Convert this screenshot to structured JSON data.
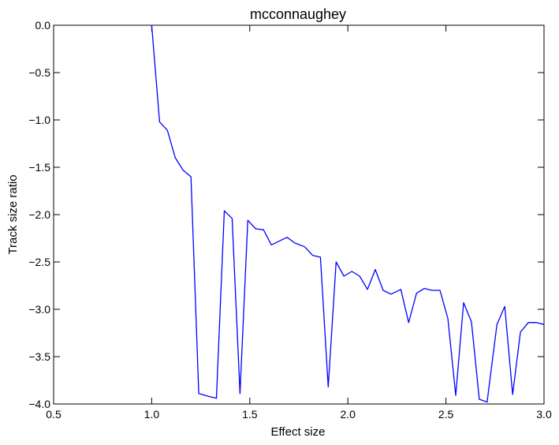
{
  "chart_data": {
    "type": "line",
    "title": "mcconnaughey",
    "xlabel": "Effect size",
    "ylabel": "Track size ratio",
    "xlim": [
      0.5,
      3.0
    ],
    "ylim": [
      -4.0,
      0.0
    ],
    "xticks": [
      0.5,
      1.0,
      1.5,
      2.0,
      2.5,
      3.0
    ],
    "xtick_labels": [
      "0.5",
      "1.0",
      "1.5",
      "2.0",
      "2.5",
      "3.0"
    ],
    "yticks": [
      0.0,
      -0.5,
      -1.0,
      -1.5,
      -2.0,
      -2.5,
      -3.0,
      -3.5,
      -4.0
    ],
    "ytick_labels": [
      "0.0",
      "−0.5",
      "−1.0",
      "−1.5",
      "−2.0",
      "−2.5",
      "−3.0",
      "−3.5",
      "−4.0"
    ],
    "grid": false,
    "color": "#0000ff",
    "x": [
      1.0,
      1.04,
      1.08,
      1.12,
      1.16,
      1.2,
      1.24,
      1.29,
      1.33,
      1.37,
      1.41,
      1.45,
      1.49,
      1.53,
      1.57,
      1.61,
      1.65,
      1.69,
      1.73,
      1.78,
      1.82,
      1.86,
      1.9,
      1.94,
      1.98,
      2.02,
      2.06,
      2.1,
      2.14,
      2.18,
      2.22,
      2.27,
      2.31,
      2.35,
      2.39,
      2.43,
      2.47,
      2.51,
      2.55,
      2.59,
      2.63,
      2.67,
      2.71,
      2.76,
      2.8,
      2.84,
      2.88,
      2.92,
      2.96,
      3.0
    ],
    "y": [
      0.0,
      -1.02,
      -1.11,
      -1.4,
      -1.53,
      -1.6,
      -3.89,
      -3.92,
      -3.94,
      -1.96,
      -2.04,
      -3.89,
      -2.06,
      -2.15,
      -2.16,
      -2.32,
      -2.28,
      -2.24,
      -2.3,
      -2.34,
      -2.43,
      -2.45,
      -3.82,
      -2.5,
      -2.65,
      -2.6,
      -2.65,
      -2.79,
      -2.58,
      -2.8,
      -2.84,
      -2.79,
      -3.14,
      -2.83,
      -2.78,
      -2.8,
      -2.8,
      -3.1,
      -3.91,
      -2.93,
      -3.13,
      -3.95,
      -3.98,
      -3.16,
      -2.97,
      -3.9,
      -3.24,
      -3.14,
      -3.14,
      -3.16
    ]
  }
}
